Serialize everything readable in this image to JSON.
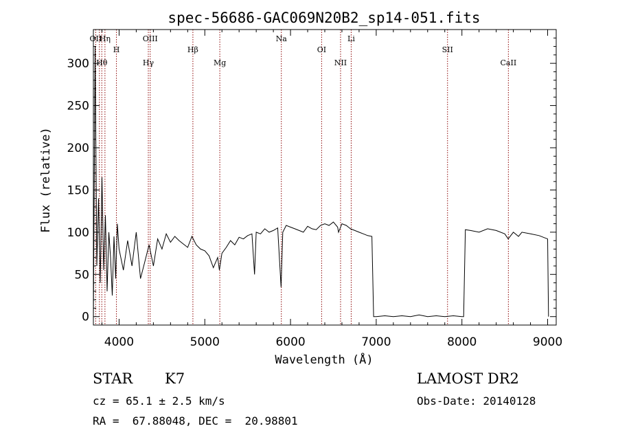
{
  "chart_data": {
    "type": "line",
    "title": "spec-56686-GAC069N20B2_sp14-051.fits",
    "xlabel": "Wavelength (Å)",
    "ylabel": "Flux (relative)",
    "xlim": [
      3700,
      9100
    ],
    "ylim": [
      -10,
      340
    ],
    "x_ticks": [
      4000,
      5000,
      6000,
      7000,
      8000,
      9000
    ],
    "y_ticks": [
      0,
      50,
      100,
      150,
      200,
      250,
      300
    ],
    "grid": false,
    "line_color": "#000000",
    "marker_color": "#8b0000",
    "series": [
      {
        "x": [
          3700,
          3720,
          3740,
          3760,
          3780,
          3800,
          3820,
          3840,
          3860,
          3880,
          3900,
          3920,
          3940,
          3960,
          3980,
          4000,
          4050,
          4100,
          4150,
          4200,
          4250,
          4300,
          4350,
          4400,
          4450,
          4500,
          4550,
          4600,
          4650,
          4700,
          4750,
          4800,
          4850,
          4900,
          4950,
          5000,
          5050,
          5100,
          5150,
          5170,
          5200,
          5250,
          5300,
          5350,
          5400,
          5450,
          5500,
          5550,
          5580,
          5600,
          5650,
          5700,
          5750,
          5800,
          5850,
          5890,
          5910,
          5950,
          6000,
          6050,
          6100,
          6150,
          6200,
          6250,
          6300,
          6350,
          6400,
          6450,
          6500,
          6550,
          6560,
          6600,
          6650,
          6700,
          6750,
          6800,
          6850,
          6900,
          6950,
          6970,
          7000,
          7100,
          7200,
          7300,
          7400,
          7500,
          7600,
          7700,
          7800,
          7900,
          8000,
          8020,
          8040,
          8100,
          8200,
          8300,
          8400,
          8500,
          8540,
          8600,
          8660,
          8700,
          8800,
          8900,
          9000,
          9010
        ],
        "y": [
          -5,
          320,
          60,
          140,
          40,
          165,
          55,
          120,
          30,
          100,
          70,
          25,
          95,
          45,
          110,
          80,
          55,
          90,
          60,
          100,
          45,
          65,
          85,
          60,
          92,
          80,
          98,
          88,
          95,
          90,
          86,
          82,
          95,
          85,
          80,
          78,
          72,
          58,
          70,
          55,
          75,
          82,
          90,
          85,
          94,
          92,
          96,
          98,
          50,
          100,
          98,
          104,
          100,
          102,
          105,
          35,
          100,
          108,
          106,
          104,
          102,
          100,
          107,
          104,
          103,
          108,
          110,
          108,
          112,
          106,
          100,
          110,
          108,
          104,
          102,
          100,
          98,
          96,
          95,
          0,
          0,
          1,
          0,
          1,
          0,
          2,
          0,
          1,
          0,
          1,
          0,
          0,
          103,
          102,
          100,
          104,
          102,
          98,
          92,
          100,
          95,
          100,
          98,
          96,
          92,
          0
        ]
      }
    ],
    "lines": [
      {
        "wave": 3727,
        "label": "OII"
      },
      {
        "wave": 3770,
        "label": ""
      },
      {
        "wave": 3798,
        "label": "Hθ"
      },
      {
        "wave": 3835,
        "label": "Hη"
      },
      {
        "wave": 3969,
        "label": "H"
      },
      {
        "wave": 4341,
        "label": "Hγ"
      },
      {
        "wave": 4363,
        "label": "OIII"
      },
      {
        "wave": 4861,
        "label": "Hβ"
      },
      {
        "wave": 5175,
        "label": "Mg"
      },
      {
        "wave": 5893,
        "label": "Na"
      },
      {
        "wave": 6363,
        "label": "OI"
      },
      {
        "wave": 6584,
        "label": "NII"
      },
      {
        "wave": 6708,
        "label": "Li"
      },
      {
        "wave": 7832,
        "label": "SII"
      },
      {
        "wave": 8542,
        "label": "CaII"
      }
    ]
  },
  "info": {
    "class_label": "STAR",
    "subclass": "K7",
    "redshift": "cz = 65.1 ± 2.5 km/s",
    "coords": "RA =  67.88048, DEC =  20.98801",
    "survey": "LAMOST DR2",
    "obs_date": "Obs-Date: 20140128"
  }
}
